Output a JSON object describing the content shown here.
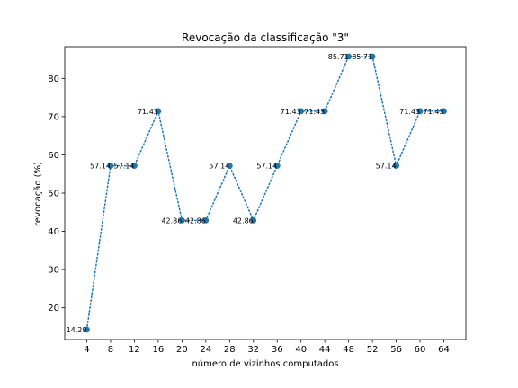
{
  "chart_data": {
    "type": "line",
    "title": "Revocação da classificação \"3\"",
    "xlabel": "número de vizinhos computados",
    "ylabel": "revocação (%)",
    "x": [
      4,
      8,
      12,
      16,
      20,
      24,
      28,
      32,
      36,
      40,
      44,
      48,
      52,
      56,
      60,
      64
    ],
    "series": [
      {
        "values": [
          14.29,
          57.14,
          57.14,
          71.43,
          42.86,
          42.86,
          57.14,
          42.86,
          57.14,
          71.43,
          71.43,
          85.71,
          85.71,
          57.14,
          71.43,
          71.43
        ],
        "labels": [
          "14.29",
          "57.14",
          "57.14",
          "71.43",
          "42.86",
          "42.86",
          "57.14",
          "42.86",
          "57.14",
          "71.43",
          "71.43",
          "85.71",
          "85.71",
          "57.14",
          "71.43",
          "71.43"
        ],
        "color": "#1f77b4",
        "line_style": "dotted",
        "marker": "circle"
      }
    ],
    "xticks": [
      "4",
      "8",
      "12",
      "16",
      "20",
      "24",
      "28",
      "32",
      "36",
      "40",
      "44",
      "48",
      "52",
      "56",
      "60",
      "64"
    ],
    "yticks": [
      "20",
      "30",
      "40",
      "50",
      "60",
      "70",
      "80"
    ],
    "xlim": [
      0.3,
      67.7
    ],
    "ylim": [
      11.7,
      88.3
    ],
    "grid": false,
    "legend": "none"
  }
}
